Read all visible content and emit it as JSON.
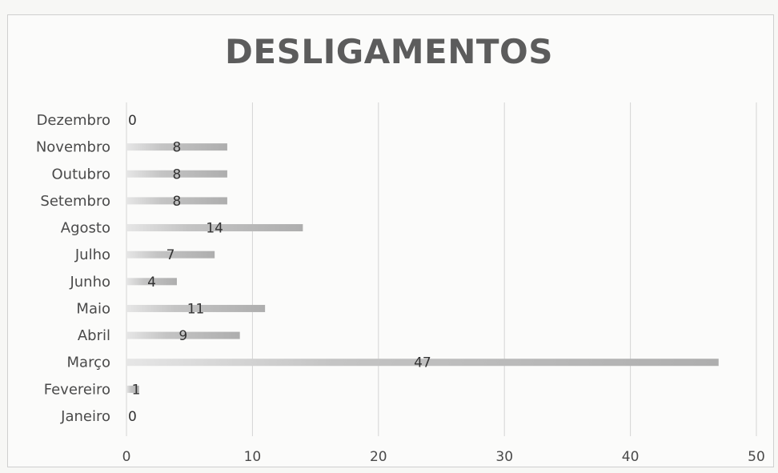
{
  "chart_data": {
    "type": "bar",
    "orientation": "horizontal",
    "title": "DESLIGAMENTOS",
    "categories": [
      "Janeiro",
      "Fevereiro",
      "Março",
      "Abril",
      "Maio",
      "Junho",
      "Julho",
      "Agosto",
      "Setembro",
      "Outubro",
      "Novembro",
      "Dezembro"
    ],
    "values": [
      0,
      1,
      47,
      9,
      11,
      4,
      7,
      14,
      8,
      8,
      8,
      0
    ],
    "xlim": [
      0,
      50
    ],
    "xticks": [
      0,
      10,
      20,
      30,
      40,
      50
    ],
    "grid": "vertical",
    "data_labels": true,
    "legend": "none",
    "bar_color": "#b0b0b0"
  }
}
